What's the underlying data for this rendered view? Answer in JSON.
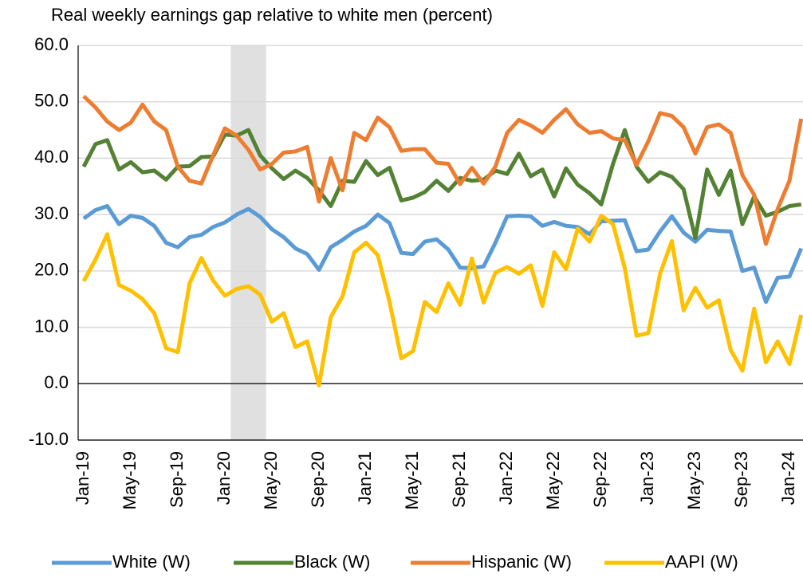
{
  "chart_data": {
    "type": "line",
    "title": "Real weekly earnings gap relative to white men (percent)",
    "categories": [
      "Jan-19",
      null,
      null,
      null,
      "May-19",
      null,
      null,
      null,
      "Sep-19",
      null,
      null,
      null,
      "Jan-20",
      null,
      null,
      null,
      "May-20",
      null,
      null,
      null,
      "Sep-20",
      null,
      null,
      null,
      "Jan-21",
      null,
      null,
      null,
      "May-21",
      null,
      null,
      null,
      "Sep-21",
      null,
      null,
      null,
      "Jan-22",
      null,
      null,
      null,
      "May-22",
      null,
      null,
      null,
      "Sep-22",
      null,
      null,
      null,
      "Jan-23",
      null,
      null,
      null,
      "May-23",
      null,
      null,
      null,
      "Sep-23",
      null,
      null,
      null,
      "Jan-24",
      null
    ],
    "series": [
      {
        "name": "White (W)",
        "color": "#5b9bd5",
        "values": [
          29.3,
          30.8,
          31.5,
          28.3,
          29.8,
          29.4,
          28.0,
          25.0,
          24.2,
          26.0,
          26.4,
          27.8,
          28.6,
          30.0,
          31.0,
          29.6,
          27.4,
          26.0,
          24.0,
          23.0,
          20.2,
          24.2,
          25.5,
          27.0,
          28.0,
          30.0,
          28.5,
          23.2,
          23.0,
          25.2,
          25.6,
          23.8,
          20.6,
          20.5,
          20.8,
          25.0,
          29.7,
          29.8,
          29.7,
          28.0,
          28.7,
          28.0,
          27.8,
          26.5,
          28.8,
          28.9,
          29.0,
          23.5,
          23.8,
          27.0,
          29.7,
          26.8,
          25.2,
          27.3,
          27.1,
          27.0,
          20.0,
          20.6,
          14.5,
          18.8,
          19.0,
          24.0
        ]
      },
      {
        "name": "Black (W)",
        "color": "#548235",
        "values": [
          38.5,
          42.5,
          43.2,
          38.0,
          39.3,
          37.5,
          37.8,
          36.2,
          38.5,
          38.6,
          40.2,
          40.3,
          44.2,
          44.0,
          45.0,
          40.5,
          38.2,
          36.3,
          37.8,
          36.5,
          34.3,
          31.5,
          36.0,
          35.8,
          39.5,
          37.0,
          38.3,
          32.5,
          33.0,
          34.0,
          36.0,
          34.2,
          36.5,
          36.0,
          36.2,
          37.8,
          37.2,
          40.8,
          36.8,
          38.0,
          33.2,
          38.2,
          35.3,
          33.8,
          31.8,
          39.0,
          45.0,
          38.5,
          35.8,
          37.5,
          36.7,
          34.5,
          25.8,
          38.0,
          33.5,
          37.8,
          28.3,
          33.2,
          29.8,
          30.5,
          31.5,
          31.8
        ]
      },
      {
        "name": "Hispanic (W)",
        "color": "#ed7d31",
        "values": [
          51.0,
          49.0,
          46.5,
          45.0,
          46.3,
          49.5,
          46.5,
          45.0,
          38.5,
          36.0,
          35.5,
          40.5,
          45.3,
          44.0,
          41.5,
          38.0,
          39.0,
          41.0,
          41.2,
          42.0,
          32.3,
          40.0,
          34.3,
          44.5,
          43.2,
          47.2,
          45.5,
          41.3,
          41.6,
          41.6,
          39.2,
          39.0,
          35.4,
          38.3,
          35.5,
          38.5,
          44.5,
          46.8,
          45.8,
          44.5,
          46.8,
          48.7,
          46.0,
          44.5,
          44.8,
          43.5,
          43.2,
          38.8,
          43.0,
          48.0,
          47.5,
          45.5,
          40.8,
          45.5,
          46.0,
          44.5,
          37.0,
          33.5,
          24.8,
          31.0,
          36.0,
          47.0
        ]
      },
      {
        "name": "AAPI (W)",
        "color": "#ffc000",
        "values": [
          18.2,
          22.0,
          26.5,
          17.5,
          16.5,
          15.0,
          12.5,
          6.3,
          5.6,
          17.8,
          22.3,
          18.3,
          15.6,
          16.8,
          17.3,
          15.8,
          11.0,
          12.5,
          6.5,
          7.5,
          -0.3,
          11.8,
          15.5,
          23.3,
          25.0,
          22.8,
          14.5,
          4.5,
          5.8,
          14.5,
          12.7,
          17.8,
          14.0,
          22.2,
          14.4,
          19.7,
          20.7,
          19.5,
          21.0,
          13.8,
          23.3,
          20.3,
          27.5,
          25.2,
          29.8,
          28.3,
          20.5,
          8.5,
          9.0,
          19.5,
          25.3,
          13.0,
          17.0,
          13.5,
          14.8,
          6.0,
          2.3,
          13.3,
          3.8,
          7.5,
          3.5,
          12.2
        ]
      }
    ],
    "ylim": [
      -10,
      60
    ],
    "yticks": [
      {
        "value": -10,
        "label": "-10.0"
      },
      {
        "value": 0,
        "label": "0.0"
      },
      {
        "value": 10,
        "label": "10.0"
      },
      {
        "value": 20,
        "label": "20.0"
      },
      {
        "value": 30,
        "label": "30.0"
      },
      {
        "value": 40,
        "label": "40.0"
      },
      {
        "value": 50,
        "label": "50.0"
      },
      {
        "value": 60,
        "label": "60.0"
      }
    ],
    "grid": true,
    "shaded_region": [
      12.5,
      15.5
    ],
    "legend": "bottom"
  }
}
